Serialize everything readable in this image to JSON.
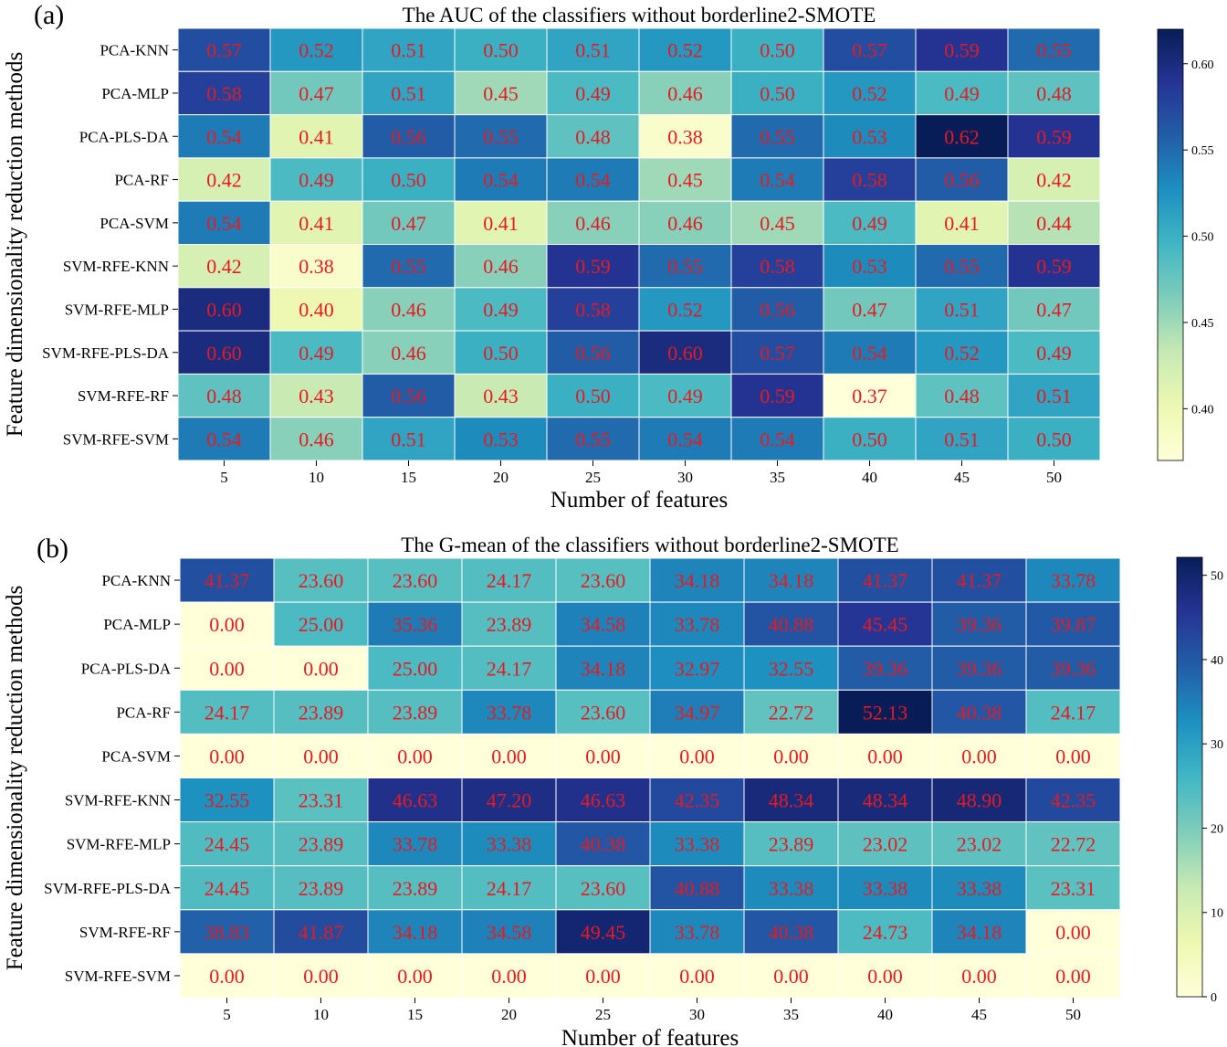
{
  "chart_data": [
    {
      "type": "heatmap",
      "panel_label": "(a)",
      "title": "The AUC of the classifiers without borderline2-SMOTE",
      "xlabel": "Number of features",
      "ylabel": "Feature dimensionality reduction methods",
      "x": [
        "5",
        "10",
        "15",
        "20",
        "25",
        "30",
        "35",
        "40",
        "45",
        "50"
      ],
      "y": [
        "PCA-KNN",
        "PCA-MLP",
        "PCA-PLS-DA",
        "PCA-RF",
        "PCA-SVM",
        "SVM-RFE-KNN",
        "SVM-RFE-MLP",
        "SVM-RFE-PLS-DA",
        "SVM-RFE-RF",
        "SVM-RFE-SVM"
      ],
      "values": [
        [
          0.57,
          0.52,
          0.51,
          0.5,
          0.51,
          0.52,
          0.5,
          0.57,
          0.59,
          0.55
        ],
        [
          0.58,
          0.47,
          0.51,
          0.45,
          0.49,
          0.46,
          0.5,
          0.52,
          0.49,
          0.48
        ],
        [
          0.54,
          0.41,
          0.56,
          0.55,
          0.48,
          0.38,
          0.55,
          0.53,
          0.62,
          0.59
        ],
        [
          0.42,
          0.49,
          0.5,
          0.54,
          0.54,
          0.45,
          0.54,
          0.58,
          0.56,
          0.42
        ],
        [
          0.54,
          0.41,
          0.47,
          0.41,
          0.46,
          0.46,
          0.45,
          0.49,
          0.41,
          0.44
        ],
        [
          0.42,
          0.38,
          0.55,
          0.46,
          0.59,
          0.55,
          0.58,
          0.53,
          0.55,
          0.59
        ],
        [
          0.6,
          0.4,
          0.46,
          0.49,
          0.58,
          0.52,
          0.56,
          0.47,
          0.51,
          0.47
        ],
        [
          0.6,
          0.49,
          0.46,
          0.5,
          0.56,
          0.6,
          0.57,
          0.54,
          0.52,
          0.49
        ],
        [
          0.48,
          0.43,
          0.56,
          0.43,
          0.5,
          0.49,
          0.59,
          0.37,
          0.48,
          0.51
        ],
        [
          0.54,
          0.46,
          0.51,
          0.53,
          0.55,
          0.54,
          0.54,
          0.5,
          0.51,
          0.5
        ]
      ],
      "value_format": 2,
      "colormap": "YlGnBu",
      "vmin": 0.37,
      "vmax": 0.62,
      "colorbar_ticks": [
        0.4,
        0.45,
        0.5,
        0.55,
        0.6
      ],
      "colorbar_tick_labels": [
        "0.40",
        "0.45",
        "0.50",
        "0.55",
        "0.60"
      ],
      "annotation_color": "#e8191f"
    },
    {
      "type": "heatmap",
      "panel_label": "(b)",
      "title": "The G-mean of the classifiers without borderline2-SMOTE",
      "xlabel": "Number of features",
      "ylabel": "Feature dimensionality reduction methods",
      "x": [
        "5",
        "10",
        "15",
        "20",
        "25",
        "30",
        "35",
        "40",
        "45",
        "50"
      ],
      "y": [
        "PCA-KNN",
        "PCA-MLP",
        "PCA-PLS-DA",
        "PCA-RF",
        "PCA-SVM",
        "SVM-RFE-KNN",
        "SVM-RFE-MLP",
        "SVM-RFE-PLS-DA",
        "SVM-RFE-RF",
        "SVM-RFE-SVM"
      ],
      "values": [
        [
          41.37,
          23.6,
          23.6,
          24.17,
          23.6,
          34.18,
          34.18,
          41.37,
          41.37,
          33.78
        ],
        [
          0.0,
          25.0,
          35.36,
          23.89,
          34.58,
          33.78,
          40.88,
          45.45,
          39.36,
          39.87
        ],
        [
          0.0,
          0.0,
          25.0,
          24.17,
          34.18,
          32.97,
          32.55,
          39.36,
          39.36,
          39.36
        ],
        [
          24.17,
          23.89,
          23.89,
          33.78,
          23.6,
          34.97,
          22.72,
          52.13,
          40.38,
          24.17
        ],
        [
          0.0,
          0.0,
          0.0,
          0.0,
          0.0,
          0.0,
          0.0,
          0.0,
          0.0,
          0.0
        ],
        [
          32.55,
          23.31,
          46.63,
          47.2,
          46.63,
          42.35,
          48.34,
          48.34,
          48.9,
          42.35
        ],
        [
          24.45,
          23.89,
          33.78,
          33.38,
          40.38,
          33.38,
          23.89,
          23.02,
          23.02,
          22.72
        ],
        [
          24.45,
          23.89,
          23.89,
          24.17,
          23.6,
          40.88,
          33.38,
          33.38,
          33.38,
          23.31
        ],
        [
          38.83,
          41.87,
          34.18,
          34.58,
          49.45,
          33.78,
          40.38,
          24.73,
          34.18,
          0.0
        ],
        [
          0.0,
          0.0,
          0.0,
          0.0,
          0.0,
          0.0,
          0.0,
          0.0,
          0.0,
          0.0
        ]
      ],
      "value_format": 2,
      "colormap": "YlGnBu",
      "vmin": 0,
      "vmax": 52.13,
      "colorbar_ticks": [
        0,
        10,
        20,
        30,
        40,
        50
      ],
      "colorbar_tick_labels": [
        "0",
        "10",
        "20",
        "30",
        "40",
        "50"
      ],
      "annotation_color": "#e8191f"
    }
  ]
}
